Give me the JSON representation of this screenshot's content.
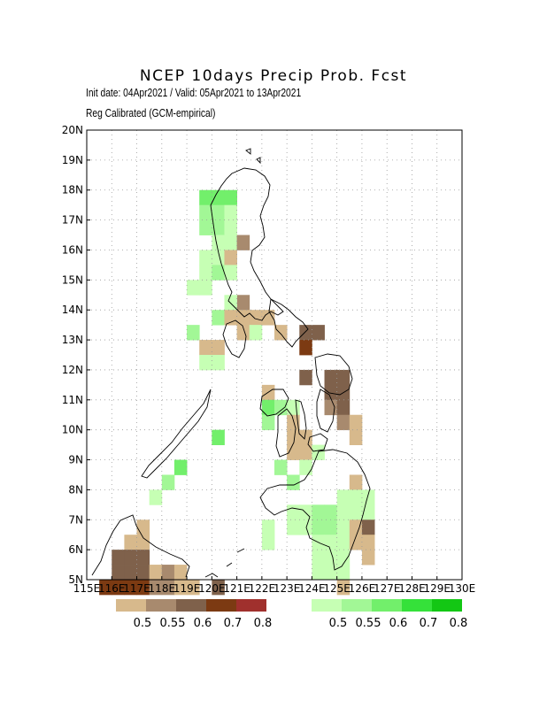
{
  "header": {
    "title": "NCEP 10days Precip Prob. Fcst",
    "line1": "Init date: 04Apr2021 / Valid: 05Apr2021 to 13Apr2021",
    "line2": "Reg Calibrated (GCM-empirical)"
  },
  "map": {
    "lon_range": [
      115,
      130
    ],
    "lat_range": [
      5,
      20
    ],
    "grid_cell_deg": 0.5,
    "lon_ticks": [
      "115E",
      "116E",
      "117E",
      "118E",
      "119E",
      "120E",
      "121E",
      "122E",
      "123E",
      "124E",
      "125E",
      "126E",
      "127E",
      "128E",
      "129E",
      "130E"
    ],
    "lat_ticks": [
      "5N",
      "6N",
      "7N",
      "8N",
      "9N",
      "10N",
      "11N",
      "12N",
      "13N",
      "14N",
      "15N",
      "16N",
      "17N",
      "18N",
      "19N",
      "20N"
    ],
    "grid": true,
    "coastline_color": "#000000"
  },
  "legends": {
    "dry": {
      "colors": [
        "#d7b98c",
        "#a88a6e",
        "#7f614b",
        "#7c3a12",
        "#a0302d"
      ],
      "labels": [
        "0.5",
        "0.55",
        "0.6",
        "0.7",
        "0.8"
      ]
    },
    "wet": {
      "colors": [
        "#c6ffb4",
        "#a2f796",
        "#72ef6b",
        "#35e13a",
        "#13c714"
      ],
      "labels": [
        "0.5",
        "0.55",
        "0.6",
        "0.7",
        "0.8"
      ]
    }
  },
  "chart_data": {
    "type": "heatmap",
    "cells": [
      {
        "lon": 119.5,
        "lat": 17.5,
        "cls": "w3"
      },
      {
        "lon": 120.0,
        "lat": 17.5,
        "cls": "w3"
      },
      {
        "lon": 120.5,
        "lat": 17.5,
        "cls": "w3"
      },
      {
        "lon": 119.5,
        "lat": 17.0,
        "cls": "w2"
      },
      {
        "lon": 120.0,
        "lat": 17.0,
        "cls": "w2"
      },
      {
        "lon": 120.5,
        "lat": 17.0,
        "cls": "w1"
      },
      {
        "lon": 119.5,
        "lat": 16.5,
        "cls": "w2"
      },
      {
        "lon": 120.0,
        "lat": 16.5,
        "cls": "w2"
      },
      {
        "lon": 120.5,
        "lat": 16.5,
        "cls": "w1"
      },
      {
        "lon": 120.0,
        "lat": 16.0,
        "cls": "w1"
      },
      {
        "lon": 120.5,
        "lat": 16.0,
        "cls": "w1"
      },
      {
        "lon": 121.0,
        "lat": 16.0,
        "cls": "d2"
      },
      {
        "lon": 119.5,
        "lat": 15.5,
        "cls": "w1"
      },
      {
        "lon": 120.0,
        "lat": 15.5,
        "cls": "w1"
      },
      {
        "lon": 120.5,
        "lat": 15.5,
        "cls": "d1"
      },
      {
        "lon": 119.5,
        "lat": 15.0,
        "cls": "w1"
      },
      {
        "lon": 120.0,
        "lat": 15.0,
        "cls": "w2"
      },
      {
        "lon": 120.5,
        "lat": 15.0,
        "cls": "w1"
      },
      {
        "lon": 119.0,
        "lat": 14.5,
        "cls": "w1"
      },
      {
        "lon": 119.5,
        "lat": 14.5,
        "cls": "w1"
      },
      {
        "lon": 121.0,
        "lat": 14.0,
        "cls": "d2"
      },
      {
        "lon": 120.5,
        "lat": 14.0,
        "cls": "w1"
      },
      {
        "lon": 120.0,
        "lat": 13.5,
        "cls": "w2"
      },
      {
        "lon": 120.5,
        "lat": 13.5,
        "cls": "d1"
      },
      {
        "lon": 121.0,
        "lat": 13.5,
        "cls": "d1"
      },
      {
        "lon": 121.5,
        "lat": 13.5,
        "cls": "d1"
      },
      {
        "lon": 122.0,
        "lat": 13.5,
        "cls": "d1"
      },
      {
        "lon": 119.0,
        "lat": 13.0,
        "cls": "w2"
      },
      {
        "lon": 121.0,
        "lat": 13.0,
        "cls": "d1"
      },
      {
        "lon": 121.5,
        "lat": 13.0,
        "cls": "w1"
      },
      {
        "lon": 122.5,
        "lat": 13.0,
        "cls": "d1"
      },
      {
        "lon": 123.5,
        "lat": 13.0,
        "cls": "d3"
      },
      {
        "lon": 124.0,
        "lat": 13.0,
        "cls": "d3"
      },
      {
        "lon": 119.5,
        "lat": 12.5,
        "cls": "d1"
      },
      {
        "lon": 120.0,
        "lat": 12.5,
        "cls": "d1"
      },
      {
        "lon": 123.5,
        "lat": 12.5,
        "cls": "d4"
      },
      {
        "lon": 119.5,
        "lat": 12.0,
        "cls": "w1"
      },
      {
        "lon": 120.0,
        "lat": 12.0,
        "cls": "w1"
      },
      {
        "lon": 123.5,
        "lat": 11.5,
        "cls": "d3"
      },
      {
        "lon": 124.5,
        "lat": 11.5,
        "cls": "d3"
      },
      {
        "lon": 125.0,
        "lat": 11.5,
        "cls": "d3"
      },
      {
        "lon": 124.5,
        "lat": 11.0,
        "cls": "d3"
      },
      {
        "lon": 125.0,
        "lat": 11.0,
        "cls": "d3"
      },
      {
        "lon": 122.0,
        "lat": 11.0,
        "cls": "d1"
      },
      {
        "lon": 122.0,
        "lat": 10.5,
        "cls": "w3"
      },
      {
        "lon": 122.5,
        "lat": 10.5,
        "cls": "w2"
      },
      {
        "lon": 123.0,
        "lat": 10.5,
        "cls": "w1"
      },
      {
        "lon": 124.5,
        "lat": 10.5,
        "cls": "d2"
      },
      {
        "lon": 125.0,
        "lat": 10.5,
        "cls": "d3"
      },
      {
        "lon": 122.0,
        "lat": 10.0,
        "cls": "w2"
      },
      {
        "lon": 123.0,
        "lat": 10.0,
        "cls": "d1"
      },
      {
        "lon": 125.0,
        "lat": 10.0,
        "cls": "d2"
      },
      {
        "lon": 125.5,
        "lat": 10.0,
        "cls": "d1"
      },
      {
        "lon": 123.0,
        "lat": 9.5,
        "cls": "d1"
      },
      {
        "lon": 123.5,
        "lat": 9.5,
        "cls": "d1"
      },
      {
        "lon": 125.5,
        "lat": 9.5,
        "cls": "d1"
      },
      {
        "lon": 120.0,
        "lat": 9.5,
        "cls": "w3"
      },
      {
        "lon": 123.0,
        "lat": 9.0,
        "cls": "d1"
      },
      {
        "lon": 123.5,
        "lat": 9.0,
        "cls": "d1"
      },
      {
        "lon": 124.0,
        "lat": 9.0,
        "cls": "w1"
      },
      {
        "lon": 122.5,
        "lat": 8.5,
        "cls": "w2"
      },
      {
        "lon": 123.5,
        "lat": 8.5,
        "cls": "w1"
      },
      {
        "lon": 118.5,
        "lat": 8.5,
        "cls": "w3"
      },
      {
        "lon": 123.0,
        "lat": 8.0,
        "cls": "w2"
      },
      {
        "lon": 125.5,
        "lat": 8.0,
        "cls": "d1"
      },
      {
        "lon": 118.0,
        "lat": 8.0,
        "cls": "w2"
      },
      {
        "lon": 125.0,
        "lat": 7.5,
        "cls": "w1"
      },
      {
        "lon": 125.5,
        "lat": 7.5,
        "cls": "w1"
      },
      {
        "lon": 126.0,
        "lat": 7.5,
        "cls": "w1"
      },
      {
        "lon": 117.5,
        "lat": 7.5,
        "cls": "w1"
      },
      {
        "lon": 123.0,
        "lat": 7.0,
        "cls": "w1"
      },
      {
        "lon": 123.5,
        "lat": 7.0,
        "cls": "w1"
      },
      {
        "lon": 124.0,
        "lat": 7.0,
        "cls": "w2"
      },
      {
        "lon": 124.5,
        "lat": 7.0,
        "cls": "w2"
      },
      {
        "lon": 125.0,
        "lat": 7.0,
        "cls": "w1"
      },
      {
        "lon": 125.5,
        "lat": 7.0,
        "cls": "w1"
      },
      {
        "lon": 126.0,
        "lat": 7.0,
        "cls": "w1"
      },
      {
        "lon": 122.0,
        "lat": 6.5,
        "cls": "w1"
      },
      {
        "lon": 123.0,
        "lat": 6.5,
        "cls": "w1"
      },
      {
        "lon": 123.5,
        "lat": 6.5,
        "cls": "w1"
      },
      {
        "lon": 124.0,
        "lat": 6.5,
        "cls": "w2"
      },
      {
        "lon": 124.5,
        "lat": 6.5,
        "cls": "w2"
      },
      {
        "lon": 125.0,
        "lat": 6.5,
        "cls": "w1"
      },
      {
        "lon": 125.5,
        "lat": 6.5,
        "cls": "d1"
      },
      {
        "lon": 126.0,
        "lat": 6.5,
        "cls": "d3"
      },
      {
        "lon": 117.0,
        "lat": 6.5,
        "cls": "d1"
      },
      {
        "lon": 122.0,
        "lat": 6.0,
        "cls": "w1"
      },
      {
        "lon": 124.0,
        "lat": 6.0,
        "cls": "w1"
      },
      {
        "lon": 124.5,
        "lat": 6.0,
        "cls": "w1"
      },
      {
        "lon": 125.0,
        "lat": 6.0,
        "cls": "w1"
      },
      {
        "lon": 125.5,
        "lat": 6.0,
        "cls": "d1"
      },
      {
        "lon": 126.0,
        "lat": 6.0,
        "cls": "d1"
      },
      {
        "lon": 116.5,
        "lat": 6.0,
        "cls": "d1"
      },
      {
        "lon": 117.0,
        "lat": 6.0,
        "cls": "d1"
      },
      {
        "lon": 124.0,
        "lat": 5.5,
        "cls": "w1"
      },
      {
        "lon": 124.5,
        "lat": 5.5,
        "cls": "w1"
      },
      {
        "lon": 125.0,
        "lat": 5.5,
        "cls": "w1"
      },
      {
        "lon": 126.0,
        "lat": 5.5,
        "cls": "d1"
      },
      {
        "lon": 116.0,
        "lat": 5.5,
        "cls": "d3"
      },
      {
        "lon": 116.5,
        "lat": 5.5,
        "cls": "d3"
      },
      {
        "lon": 117.0,
        "lat": 5.5,
        "cls": "d3"
      },
      {
        "lon": 124.0,
        "lat": 5.0,
        "cls": "w1"
      },
      {
        "lon": 124.5,
        "lat": 5.0,
        "cls": "w1"
      },
      {
        "lon": 125.0,
        "lat": 5.0,
        "cls": "w1"
      },
      {
        "lon": 116.0,
        "lat": 5.0,
        "cls": "d3"
      },
      {
        "lon": 116.5,
        "lat": 5.0,
        "cls": "d3"
      },
      {
        "lon": 117.0,
        "lat": 5.0,
        "cls": "d3"
      },
      {
        "lon": 117.5,
        "lat": 5.0,
        "cls": "d1"
      },
      {
        "lon": 118.0,
        "lat": 5.0,
        "cls": "d2"
      },
      {
        "lon": 118.5,
        "lat": 5.0,
        "cls": "d1"
      },
      {
        "lon": 125.0,
        "lat": 4.5,
        "cls": "d1"
      },
      {
        "lon": 115.5,
        "lat": 4.5,
        "cls": "d4"
      },
      {
        "lon": 116.0,
        "lat": 4.5,
        "cls": "d4"
      },
      {
        "lon": 116.5,
        "lat": 4.5,
        "cls": "d4"
      },
      {
        "lon": 117.0,
        "lat": 4.5,
        "cls": "d4"
      },
      {
        "lon": 117.5,
        "lat": 4.5,
        "cls": "d2"
      },
      {
        "lon": 118.0,
        "lat": 4.5,
        "cls": "d2"
      },
      {
        "lon": 118.5,
        "lat": 4.5,
        "cls": "d1"
      },
      {
        "lon": 119.0,
        "lat": 4.5,
        "cls": "d1"
      },
      {
        "lon": 120.0,
        "lat": 4.5,
        "cls": "d3"
      }
    ]
  }
}
